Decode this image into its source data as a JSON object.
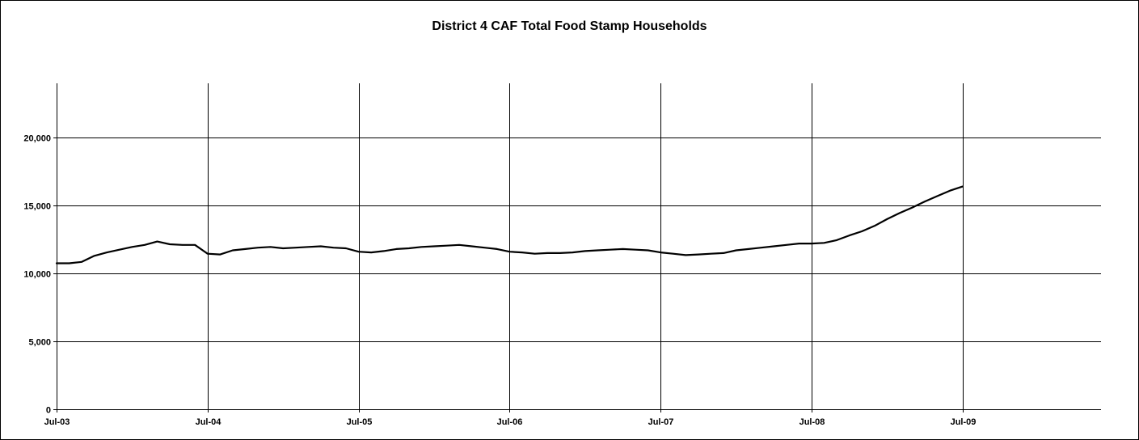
{
  "chart_data": {
    "type": "line",
    "title": "District 4 CAF Total Food Stamp Households",
    "xlabel": "",
    "ylabel": "",
    "ylim": [
      0,
      24000
    ],
    "yticks": [
      0,
      5000,
      10000,
      15000,
      20000
    ],
    "ytick_labels": [
      "0",
      "5,000",
      "10,000",
      "15,000",
      "20,000"
    ],
    "xticks": [
      "Jul-03",
      "Jul-04",
      "Jul-05",
      "Jul-06",
      "Jul-07",
      "Jul-08",
      "Jul-09"
    ],
    "x_start": "Jul-03",
    "x_end": "Jun-10",
    "grid": true,
    "legend": "none",
    "line_color": "#000000",
    "series": [
      {
        "x": [
          "Jul-03",
          "Aug-03",
          "Sep-03",
          "Oct-03",
          "Nov-03",
          "Dec-03",
          "Jan-04",
          "Feb-04",
          "Mar-04",
          "Apr-04",
          "May-04",
          "Jun-04",
          "Jul-04",
          "Aug-04",
          "Sep-04",
          "Oct-04",
          "Nov-04",
          "Dec-04",
          "Jan-05",
          "Feb-05",
          "Mar-05",
          "Apr-05",
          "May-05",
          "Jun-05",
          "Jul-05",
          "Aug-05",
          "Sep-05",
          "Oct-05",
          "Nov-05",
          "Dec-05",
          "Jan-06",
          "Feb-06",
          "Mar-06",
          "Apr-06",
          "May-06",
          "Jun-06",
          "Jul-06",
          "Aug-06",
          "Sep-06",
          "Oct-06",
          "Nov-06",
          "Dec-06",
          "Jan-07",
          "Feb-07",
          "Mar-07",
          "Apr-07",
          "May-07",
          "Jun-07",
          "Jul-07",
          "Aug-07",
          "Sep-07",
          "Oct-07",
          "Nov-07",
          "Dec-07",
          "Jan-08",
          "Feb-08",
          "Mar-08",
          "Apr-08",
          "May-08",
          "Jun-08",
          "Jul-08",
          "Aug-08",
          "Sep-08",
          "Oct-08",
          "Nov-08",
          "Dec-08",
          "Jan-09",
          "Feb-09",
          "Mar-09",
          "Apr-09",
          "May-09",
          "Jun-09",
          "Jul-09"
        ],
        "values": [
          10750,
          10750,
          10850,
          11300,
          11550,
          11750,
          11950,
          12100,
          12350,
          12150,
          12100,
          12100,
          11450,
          11400,
          11700,
          11800,
          11900,
          11950,
          11850,
          11900,
          11950,
          12000,
          11900,
          11850,
          11600,
          11550,
          11650,
          11800,
          11850,
          11950,
          12000,
          12050,
          12100,
          12000,
          11900,
          11800,
          11600,
          11550,
          11450,
          11500,
          11500,
          11550,
          11650,
          11700,
          11750,
          11800,
          11750,
          11700,
          11550,
          11450,
          11350,
          11400,
          11450,
          11500,
          11700,
          11800,
          11900,
          12000,
          12100,
          12200,
          12200,
          12250,
          12450,
          12800,
          13100,
          13500,
          14000,
          14450,
          14850,
          15300,
          15700,
          16100,
          16400
        ]
      }
    ]
  }
}
